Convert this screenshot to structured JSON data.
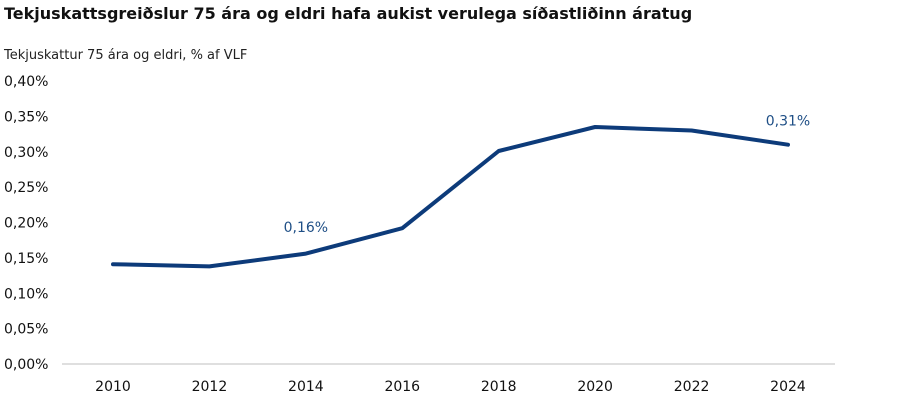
{
  "chart_data": {
    "type": "line",
    "title": "Tekjuskattsgreiðslur 75 ára og eldri hafa aukist verulega síðastliðinn áratug",
    "subtitle": "Tekjuskattur 75 ára og eldri, % af VLF",
    "xlabel": "",
    "ylabel": "",
    "x": [
      2010,
      2012,
      2014,
      2016,
      2018,
      2020,
      2022,
      2024
    ],
    "x_ticks": [
      "2010",
      "2012",
      "2014",
      "2016",
      "2018",
      "2020",
      "2022",
      "2024"
    ],
    "ylim": [
      0,
      0.4
    ],
    "y_ticks": [
      {
        "value": 0.0,
        "label": "0,00%"
      },
      {
        "value": 0.05,
        "label": "0,05%"
      },
      {
        "value": 0.1,
        "label": "0,10%"
      },
      {
        "value": 0.15,
        "label": "0,15%"
      },
      {
        "value": 0.2,
        "label": "0,20%"
      },
      {
        "value": 0.25,
        "label": "0,25%"
      },
      {
        "value": 0.3,
        "label": "0,30%"
      },
      {
        "value": 0.35,
        "label": "0,35%"
      },
      {
        "value": 0.4,
        "label": "0,40%"
      }
    ],
    "series": [
      {
        "values": [
          0.141,
          0.138,
          0.156,
          0.192,
          0.301,
          0.335,
          0.33,
          0.31
        ],
        "color": "#0d3b7a"
      }
    ],
    "annotations": [
      {
        "x": 2014,
        "value": 0.16,
        "label": "0,16%"
      },
      {
        "x": 2024,
        "value": 0.31,
        "label": "0,31%"
      }
    ],
    "annotation_color": "#1f4f86",
    "grid": false,
    "legend": "none"
  }
}
